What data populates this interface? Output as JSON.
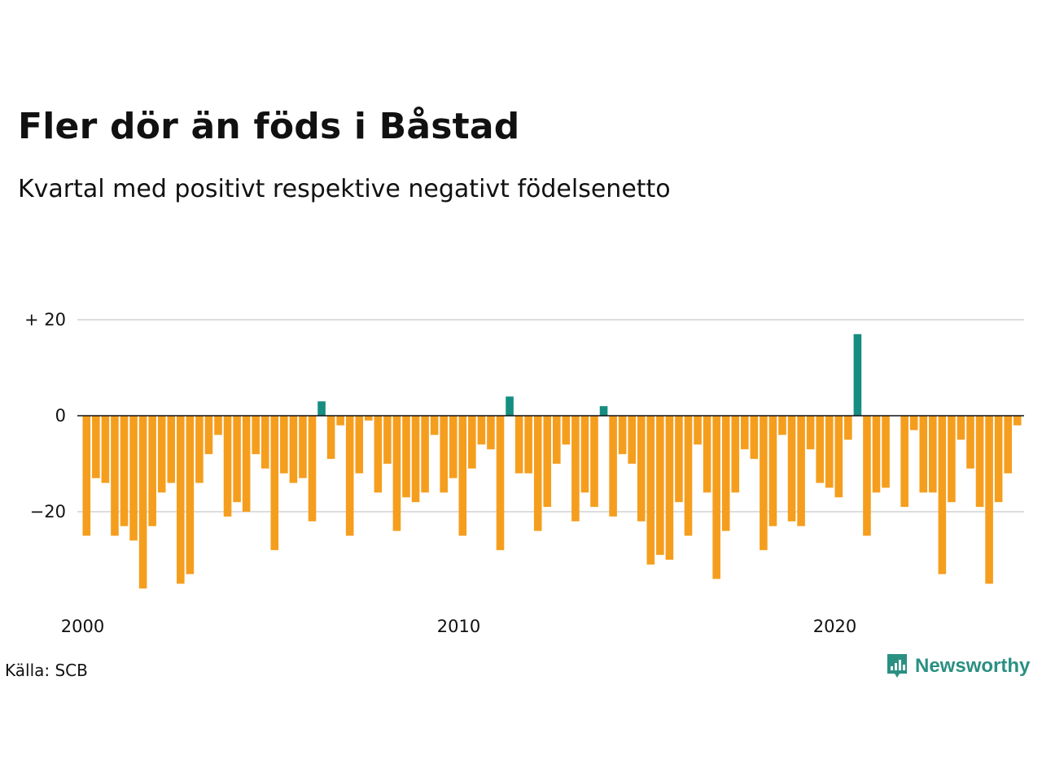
{
  "title": "Fler dör än föds i Båstad",
  "subtitle": "Kvartal med positivt respektive negativt födelsenetto",
  "source": "Källa: SCB",
  "brand": {
    "name": "Newsworthy",
    "icon": "newsworthy-logo-icon",
    "color": "#2a9082"
  },
  "colors": {
    "positive": "#168d81",
    "negative": "#f59e1e",
    "grid": "#dddddd",
    "axis": "#111111"
  },
  "chart_data": {
    "type": "bar",
    "title": "Fler dör än föds i Båstad",
    "subtitle": "Kvartal med positivt respektive negativt födelsenetto",
    "x_start": 2000,
    "x_step": 0.25,
    "x_ticks": [
      2000,
      2010,
      2020
    ],
    "x_tick_labels": [
      "2000",
      "2010",
      "2020"
    ],
    "y_ticks": [
      20,
      0,
      -20
    ],
    "y_tick_labels": [
      "+ 20",
      "0",
      "−20"
    ],
    "ylim": [
      -40,
      23
    ],
    "grid": true,
    "values": [
      -25,
      -13,
      -14,
      -25,
      -23,
      -26,
      -36,
      -23,
      -16,
      -14,
      -35,
      -33,
      -14,
      -8,
      -4,
      -21,
      -18,
      -20,
      -8,
      -11,
      -28,
      -12,
      -14,
      -13,
      -22,
      3,
      -9,
      -2,
      -25,
      -12,
      -1,
      -16,
      -10,
      -24,
      -17,
      -18,
      -16,
      -4,
      -16,
      -13,
      -25,
      -11,
      -6,
      -7,
      -28,
      4,
      -12,
      -12,
      -24,
      -19,
      -10,
      -6,
      -22,
      -16,
      -19,
      2,
      -21,
      -8,
      -10,
      -22,
      -31,
      -29,
      -30,
      -18,
      -25,
      -6,
      -16,
      -34,
      -24,
      -16,
      -7,
      -9,
      -28,
      -23,
      -4,
      -22,
      -23,
      -7,
      -14,
      -15,
      -17,
      -5,
      17,
      -25,
      -16,
      -15,
      0,
      -19,
      -3,
      -16,
      -16,
      -33,
      -18,
      -5,
      -11,
      -19,
      -35,
      -18,
      -12,
      -2
    ]
  }
}
